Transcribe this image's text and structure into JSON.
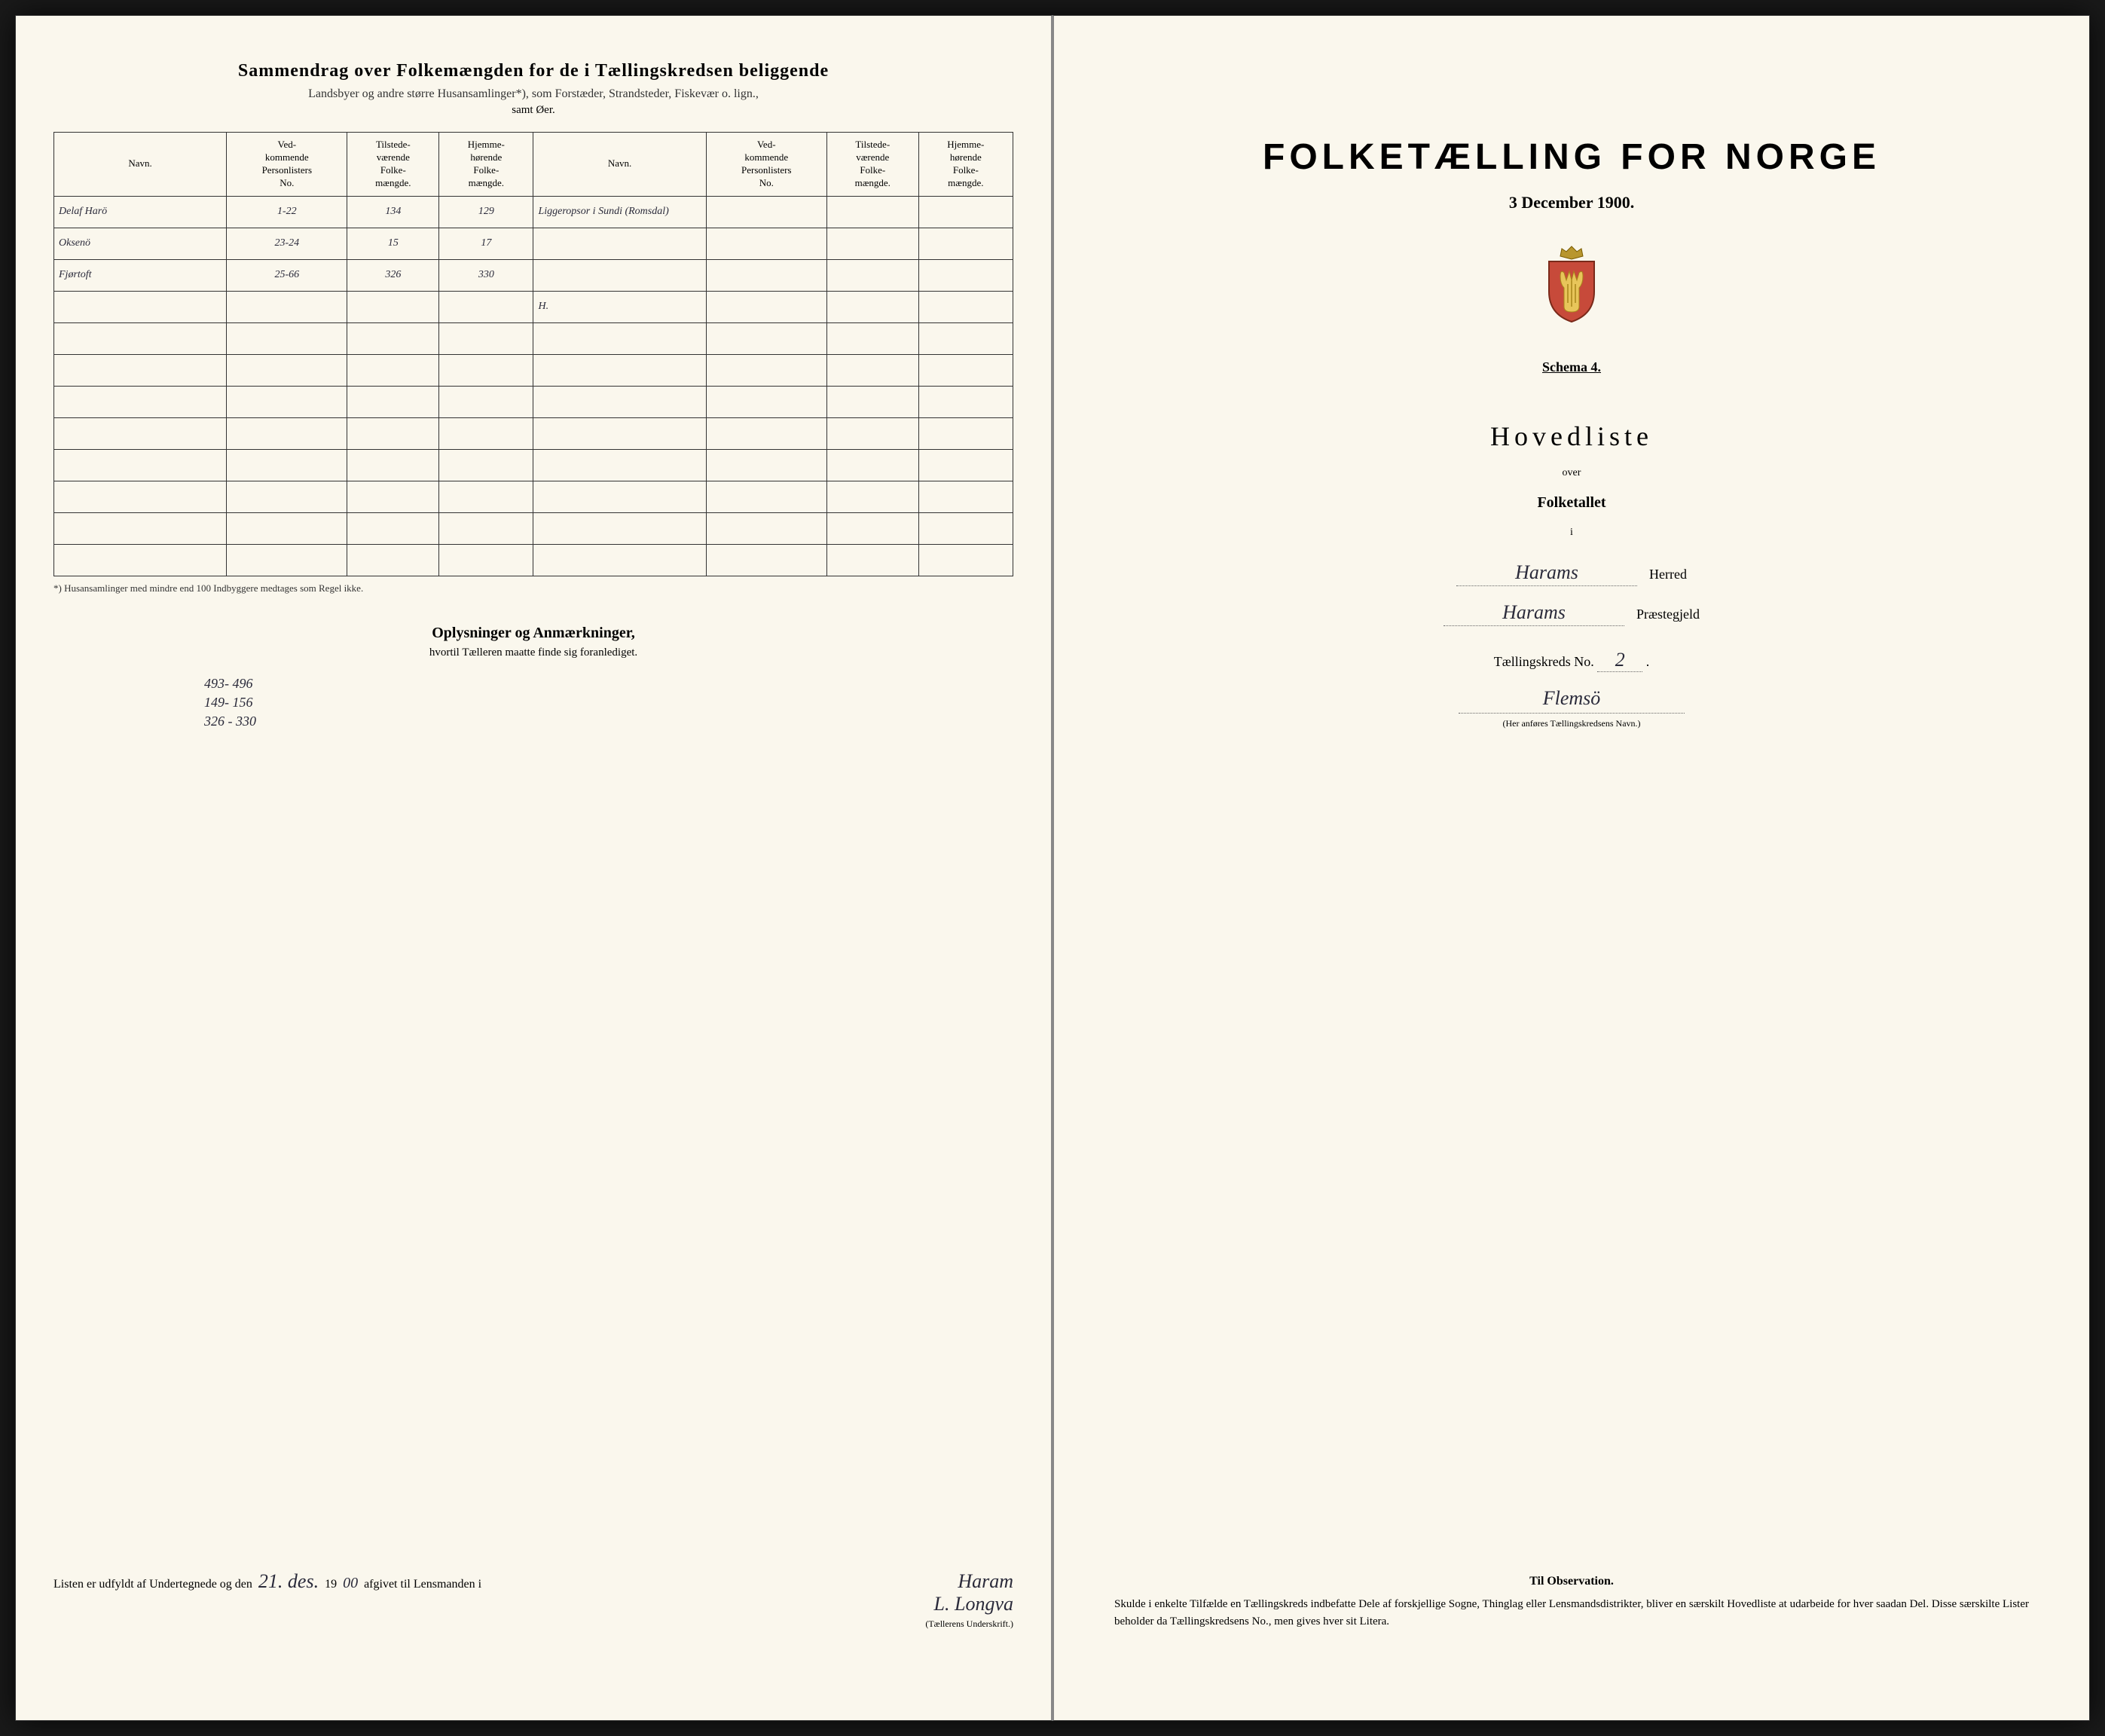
{
  "left": {
    "title": "Sammendrag over Folkemængden for de i Tællingskredsen beliggende",
    "subtitle": "Landsbyer og andre større Husansamlinger*), som Forstæder, Strandsteder, Fiskevær o. lign.,",
    "subtitle2": "samt Øer.",
    "columns": {
      "navn": "Navn.",
      "vedk": "Ved-\nkommende\nPersonlisters\nNo.",
      "tilstede": "Tilstede-\nværende\nFolke-\nmængde.",
      "hjemme": "Hjemme-\nhørende\nFolke-\nmængde."
    },
    "rows": [
      {
        "navn": "Delaf Harö",
        "no": "1-22",
        "tilstede": "134",
        "hjemme": "129",
        "navn2": "Liggeropsor i Sundi (Romsdal)"
      },
      {
        "navn": "Oksenö",
        "no": "23-24",
        "tilstede": "15",
        "hjemme": "17",
        "navn2": ""
      },
      {
        "navn": "Fjørtoft",
        "no": "25-66",
        "tilstede": "326",
        "hjemme": "330",
        "navn2": ""
      },
      {
        "navn": "",
        "no": "",
        "tilstede": "",
        "hjemme": "",
        "navn2": "H."
      }
    ],
    "empty_rows": 8,
    "footnote": "*) Husansamlinger med mindre end 100 Indbyggere medtages som Regel ikke.",
    "oplysninger_title": "Oplysninger og Anmærkninger,",
    "oplysninger_sub": "hvortil Tælleren maatte finde sig foranlediget.",
    "notes": [
      "493- 496",
      "149- 156",
      "326 - 330"
    ],
    "sig_text_1": "Listen er udfyldt af Undertegnede og den",
    "sig_date": "21. des.",
    "sig_year_prefix": "19",
    "sig_year_hand": "00",
    "sig_text_2": "afgivet til Lensmanden i",
    "sig_place": "Haram",
    "sig_name": "L. Longva",
    "sig_caption": "(Tællerens Underskrift.)"
  },
  "right": {
    "title": "FOLKETÆLLING FOR NORGE",
    "date": "3 December 1900.",
    "schema": "Schema 4.",
    "hovedliste": "Hovedliste",
    "over": "over",
    "folketallet": "Folketallet",
    "i": "i",
    "herred_value": "Harams",
    "herred_label": "Herred",
    "praestegjeld_value": "Harams",
    "praestegjeld_label": "Præstegjeld",
    "tk_label": "Tællingskreds No.",
    "tk_no": "2",
    "tk_name": "Flemsö",
    "tk_caption": "(Her anføres Tællingskredsens Navn.)",
    "obs_title": "Til Observation.",
    "obs_text": "Skulde i enkelte Tilfælde en Tællingskreds indbefatte Dele af forskjellige Sogne, Thinglag eller Lensmandsdistrikter, bliver en særskilt Hovedliste at udarbeide for hver saadan Del. Disse særskilte Lister beholder da Tællingskredsens No., men gives hver sit Litera."
  },
  "colors": {
    "page_bg": "#faf7ed",
    "book_bg": "#f5f2e8",
    "text": "#1a1a1a",
    "border": "#333333",
    "handwriting": "#2a2a3a"
  }
}
